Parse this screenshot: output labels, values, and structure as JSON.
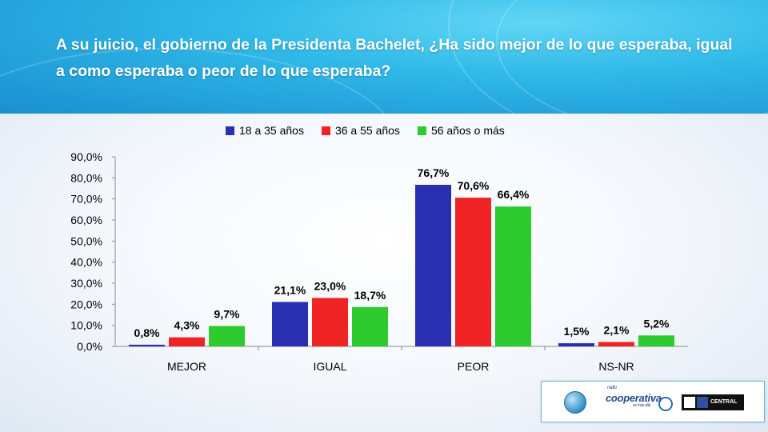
{
  "title": "A su juicio, el gobierno de la Presidenta Bachelet, ¿Ha sido mejor de lo que esperaba, igual a como esperaba o peor de lo que esperaba?",
  "colors": {
    "series1": "#2a2fb0",
    "series2": "#f02424",
    "series3": "#2ecb2e"
  },
  "logos": {
    "radio_small": "radio",
    "cooperativa": "cooperativa",
    "cooperativa_tag": "se más allá",
    "uc_name": "CENTRAL"
  },
  "chart_data": {
    "type": "bar",
    "categories": [
      "MEJOR",
      "IGUAL",
      "PEOR",
      "NS-NR"
    ],
    "series": [
      {
        "name": "18 a 35 años",
        "values": [
          0.8,
          21.1,
          76.7,
          1.5
        ],
        "labels": [
          "0,8%",
          "21,1%",
          "76,7%",
          "1,5%"
        ]
      },
      {
        "name": "36 a 55 años",
        "values": [
          4.3,
          23.0,
          70.6,
          2.1
        ],
        "labels": [
          "4,3%",
          "23,0%",
          "70,6%",
          "2,1%"
        ]
      },
      {
        "name": "56 años o más",
        "values": [
          9.7,
          18.7,
          66.4,
          5.2
        ],
        "labels": [
          "9,7%",
          "18,7%",
          "66,4%",
          "5,2%"
        ]
      }
    ],
    "yticks": [
      "0,0%",
      "10,0%",
      "20,0%",
      "30,0%",
      "40,0%",
      "50,0%",
      "60,0%",
      "70,0%",
      "80,0%",
      "90,0%"
    ],
    "ylim": [
      0,
      90
    ],
    "grid": false,
    "legend_position": "top"
  }
}
